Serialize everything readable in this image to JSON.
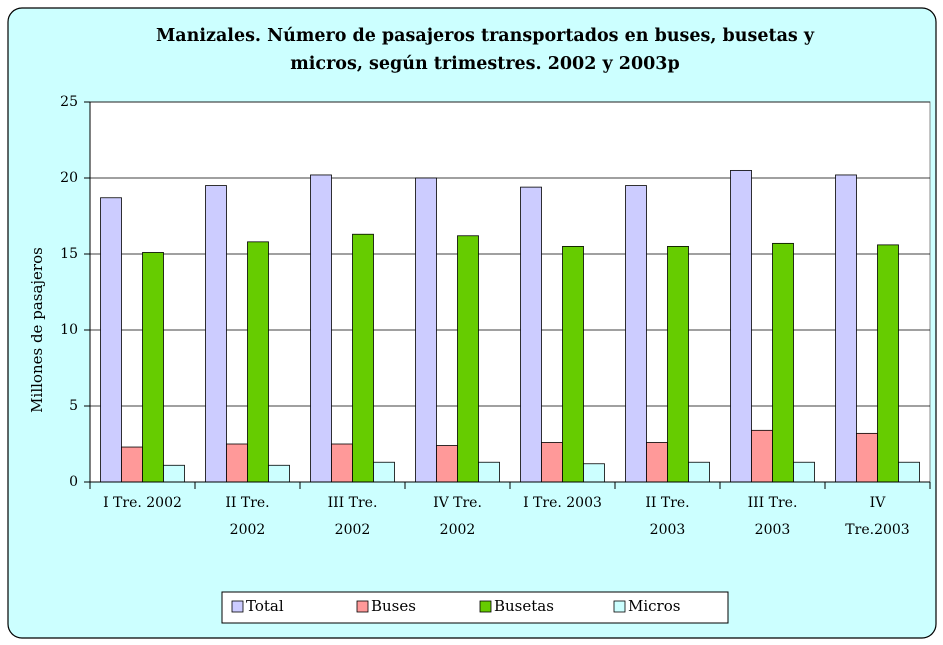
{
  "chart_data": {
    "type": "bar",
    "title": "Manizales. Número de pasajeros transportados en buses, busetas y\nmicros, según trimestres. 2002 y 2003p",
    "ylabel": "Millones de pasajeros",
    "categories": [
      "I Tre. 2002",
      "II Tre.\n2002",
      "III Tre.\n2002",
      "IV Tre.\n2002",
      "I Tre. 2003",
      "II Tre.\n2003",
      "III Tre.\n2003",
      "IV\nTre.2003"
    ],
    "series": [
      {
        "name": "Total",
        "color": "#ccccff",
        "values": [
          18.7,
          19.5,
          20.2,
          20.0,
          19.4,
          19.5,
          20.5,
          20.2
        ]
      },
      {
        "name": "Buses",
        "color": "#ff9999",
        "values": [
          2.3,
          2.5,
          2.5,
          2.4,
          2.6,
          2.6,
          3.4,
          3.2
        ]
      },
      {
        "name": "Busetas",
        "color": "#66cc00",
        "values": [
          15.1,
          15.8,
          16.3,
          16.2,
          15.5,
          15.5,
          15.7,
          15.6
        ]
      },
      {
        "name": "Micros",
        "color": "#ccffff",
        "values": [
          1.1,
          1.1,
          1.3,
          1.3,
          1.2,
          1.3,
          1.3,
          1.3
        ]
      }
    ],
    "ylim": [
      0,
      25
    ],
    "yticks": [
      0,
      5,
      10,
      15,
      20,
      25
    ],
    "grid": true,
    "legend": "bottom"
  }
}
